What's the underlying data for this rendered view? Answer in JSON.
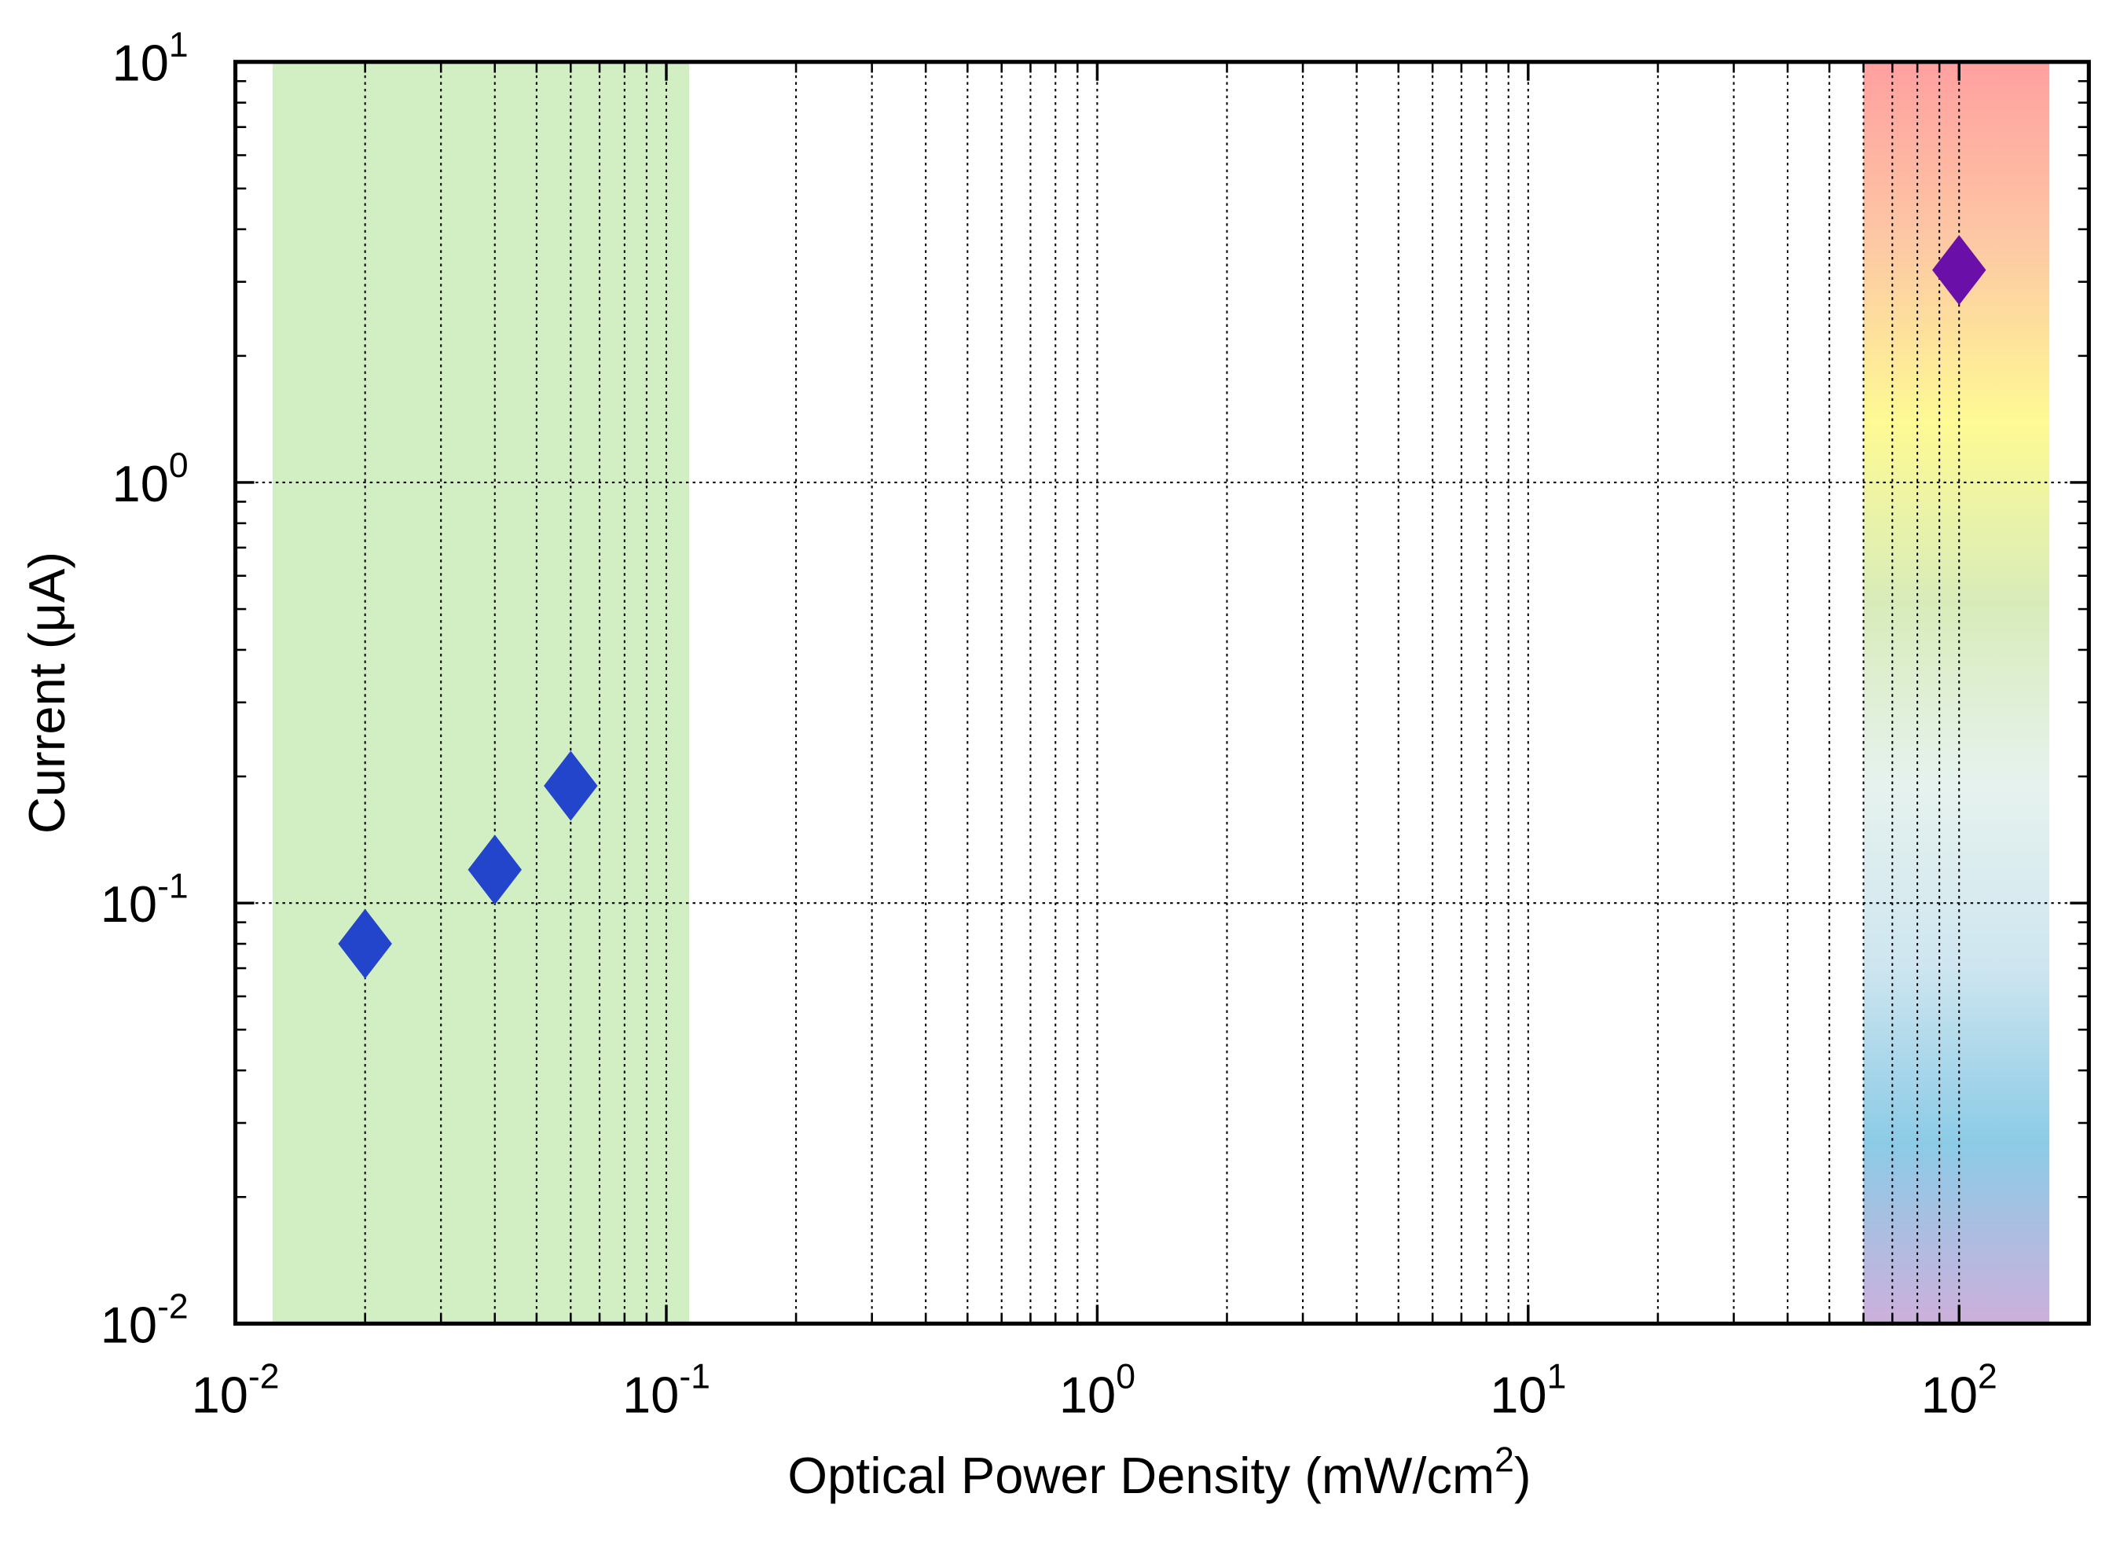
{
  "chart_data": {
    "type": "scatter",
    "x_label": [
      "Optical Power Density (mW/cm",
      "2",
      ")"
    ],
    "y_label": "Current (μA)",
    "x": [
      0.02,
      0.04,
      0.06,
      100
    ],
    "values": [
      0.08,
      0.12,
      0.19,
      3.2
    ],
    "point_colors": [
      "#2245cc",
      "#2245cc",
      "#2245cc",
      "#6a0fa8"
    ],
    "log_x": true,
    "log_y": true,
    "xlim": [
      0.01,
      200
    ],
    "ylim": [
      0.01,
      10
    ],
    "xticks": [
      {
        "value": 0.01,
        "label": "10",
        "exponent": "-2"
      },
      {
        "value": 0.1,
        "label": "10",
        "exponent": "-1"
      },
      {
        "value": 1,
        "label": "10",
        "exponent": "0"
      },
      {
        "value": 10,
        "label": "10",
        "exponent": "1"
      },
      {
        "value": 100,
        "label": "10",
        "exponent": "2"
      }
    ],
    "yticks": [
      {
        "value": 0.01,
        "label": "10",
        "exponent": "-2"
      },
      {
        "value": 0.1,
        "label": "10",
        "exponent": "-1"
      },
      {
        "value": 1,
        "label": "10",
        "exponent": "0"
      },
      {
        "value": 10,
        "label": "10",
        "exponent": "1"
      }
    ],
    "x_minor_ticks": [
      0.02,
      0.03,
      0.04,
      0.05,
      0.06,
      0.07,
      0.08,
      0.09,
      0.2,
      0.3,
      0.4,
      0.5,
      0.6,
      0.7,
      0.8,
      0.9,
      2,
      3,
      4,
      5,
      6,
      7,
      8,
      9,
      20,
      30,
      40,
      50,
      60,
      70,
      80,
      90
    ],
    "y_minor_ticks": [
      0.02,
      0.03,
      0.04,
      0.05,
      0.06,
      0.07,
      0.08,
      0.09,
      0.2,
      0.3,
      0.4,
      0.5,
      0.6,
      0.7,
      0.8,
      0.9,
      2,
      3,
      4,
      5,
      6,
      7,
      8,
      9
    ],
    "grid": true,
    "bands": [
      {
        "x_range": [
          0.0122,
          0.113
        ],
        "colors": [
          "#d2efc4"
        ]
      },
      {
        "x_range": [
          60,
          162
        ],
        "colors": [
          "#ffa0a0",
          "#fdc8a4",
          "#fefa94",
          "#d8ecba",
          "#e6f2ee",
          "#cfe6f0",
          "#8ccbe6",
          "#cdb0dc"
        ]
      }
    ]
  }
}
